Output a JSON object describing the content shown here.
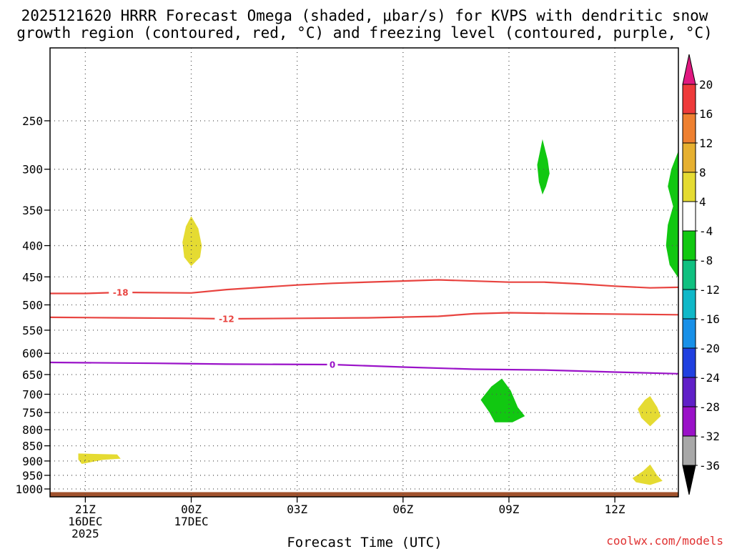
{
  "chart_data": {
    "type": "heatmap",
    "title_line1": "2025121620 HRRR Forecast Omega (shaded, μbar/s) for KVPS with dendritic snow",
    "title_line2": "growth region (contoured, red, °C) and freezing level (contoured, purple, °C)",
    "xlabel": "Forecast Time (UTC)",
    "credit": "coolwx.com/models",
    "x_range_hours": [
      -1.0,
      16.8
    ],
    "x_ticks": [
      {
        "hour": 0,
        "lines": [
          "21Z",
          "16DEC",
          "2025"
        ]
      },
      {
        "hour": 3,
        "lines": [
          "00Z",
          "17DEC"
        ]
      },
      {
        "hour": 6,
        "lines": [
          "03Z"
        ]
      },
      {
        "hour": 9,
        "lines": [
          "06Z"
        ]
      },
      {
        "hour": 12,
        "lines": [
          "09Z"
        ]
      },
      {
        "hour": 15,
        "lines": [
          "12Z"
        ]
      }
    ],
    "y_scale": "log-pressure",
    "y_range_hpa": [
      1030,
      190
    ],
    "y_ticks": [
      250,
      300,
      350,
      400,
      450,
      500,
      550,
      600,
      650,
      700,
      750,
      800,
      850,
      900,
      950,
      1000
    ],
    "grid": true,
    "terrain_hpa": 1012,
    "contours": [
      {
        "label": "-18",
        "color": "#e8433f",
        "label_hour": 1.0,
        "points": [
          [
            -1.0,
            479
          ],
          [
            0.0,
            479
          ],
          [
            1.0,
            477
          ],
          [
            3.0,
            478
          ],
          [
            4.0,
            472
          ],
          [
            6.0,
            464
          ],
          [
            7.0,
            461
          ],
          [
            9.0,
            457
          ],
          [
            10.0,
            455
          ],
          [
            12.0,
            459
          ],
          [
            13.0,
            459
          ],
          [
            14.0,
            462
          ],
          [
            15.0,
            466
          ],
          [
            16.0,
            469
          ],
          [
            16.8,
            468
          ]
        ]
      },
      {
        "label": "-12",
        "color": "#e8433f",
        "label_hour": 4.0,
        "points": [
          [
            -1.0,
            524
          ],
          [
            1.0,
            525
          ],
          [
            3.0,
            526
          ],
          [
            4.0,
            527
          ],
          [
            6.0,
            526
          ],
          [
            8.0,
            525
          ],
          [
            10.0,
            522
          ],
          [
            11.0,
            517
          ],
          [
            12.0,
            515
          ],
          [
            14.0,
            517
          ],
          [
            16.8,
            519
          ]
        ]
      },
      {
        "label": "0",
        "color": "#9a12c8",
        "label_hour": 7.0,
        "points": [
          [
            -1.0,
            621
          ],
          [
            2.0,
            623
          ],
          [
            4.0,
            625
          ],
          [
            7.0,
            626
          ],
          [
            9.0,
            632
          ],
          [
            11.0,
            637
          ],
          [
            13.0,
            639
          ],
          [
            15.0,
            644
          ],
          [
            16.8,
            648
          ]
        ]
      }
    ],
    "omega_regions": [
      {
        "value": 4,
        "color": "#e5db32",
        "points": [
          [
            3.0,
            358
          ],
          [
            3.2,
            375
          ],
          [
            3.3,
            400
          ],
          [
            3.25,
            418
          ],
          [
            3.0,
            432
          ],
          [
            2.8,
            418
          ],
          [
            2.75,
            395
          ],
          [
            2.85,
            372
          ]
        ]
      },
      {
        "value": 4,
        "color": "#e5db32",
        "points": [
          [
            -0.2,
            875
          ],
          [
            0.9,
            878
          ],
          [
            1.0,
            892
          ],
          [
            0.5,
            896
          ],
          [
            -0.1,
            910
          ],
          [
            -0.2,
            895
          ]
        ]
      },
      {
        "value": -6,
        "color": "#11c811",
        "points": [
          [
            12.95,
            268
          ],
          [
            13.1,
            290
          ],
          [
            13.15,
            305
          ],
          [
            13.05,
            320
          ],
          [
            12.95,
            330
          ],
          [
            12.85,
            315
          ],
          [
            12.8,
            295
          ]
        ]
      },
      {
        "value": -6,
        "color": "#11c811",
        "points": [
          [
            16.8,
            280
          ],
          [
            16.6,
            300
          ],
          [
            16.5,
            320
          ],
          [
            16.65,
            345
          ],
          [
            16.5,
            370
          ],
          [
            16.45,
            400
          ],
          [
            16.55,
            430
          ],
          [
            16.8,
            452
          ]
        ]
      },
      {
        "value": -6,
        "color": "#11c811",
        "points": [
          [
            11.8,
            660
          ],
          [
            12.05,
            690
          ],
          [
            12.25,
            735
          ],
          [
            12.45,
            760
          ],
          [
            12.1,
            778
          ],
          [
            11.6,
            778
          ],
          [
            11.45,
            750
          ],
          [
            11.2,
            715
          ],
          [
            11.5,
            680
          ]
        ]
      },
      {
        "value": 4,
        "color": "#e5db32",
        "points": [
          [
            16.0,
            705
          ],
          [
            16.2,
            735
          ],
          [
            16.3,
            760
          ],
          [
            16.0,
            790
          ],
          [
            15.75,
            765
          ],
          [
            15.65,
            740
          ],
          [
            15.85,
            715
          ]
        ]
      },
      {
        "value": 4,
        "color": "#e5db32",
        "points": [
          [
            16.0,
            912
          ],
          [
            16.2,
            950
          ],
          [
            16.35,
            970
          ],
          [
            16.0,
            985
          ],
          [
            15.6,
            975
          ],
          [
            15.5,
            960
          ],
          [
            15.8,
            935
          ]
        ]
      }
    ],
    "colorbar": {
      "labels": [
        "20",
        "16",
        "12",
        "8",
        "4",
        "-4",
        "-8",
        "-12",
        "-16",
        "-20",
        "-24",
        "-28",
        "-32",
        "-36"
      ],
      "colors": [
        "#ee3a3a",
        "#ee8030",
        "#e6b030",
        "#e5db32",
        "#ffffff",
        "#11c811",
        "#10c080",
        "#10b8c8",
        "#1890e8",
        "#2040e0",
        "#6020c8",
        "#9a12c8",
        "#a8a8a8"
      ],
      "top_arrow_color": "#e01880",
      "bottom_arrow_color": "#000000"
    }
  }
}
